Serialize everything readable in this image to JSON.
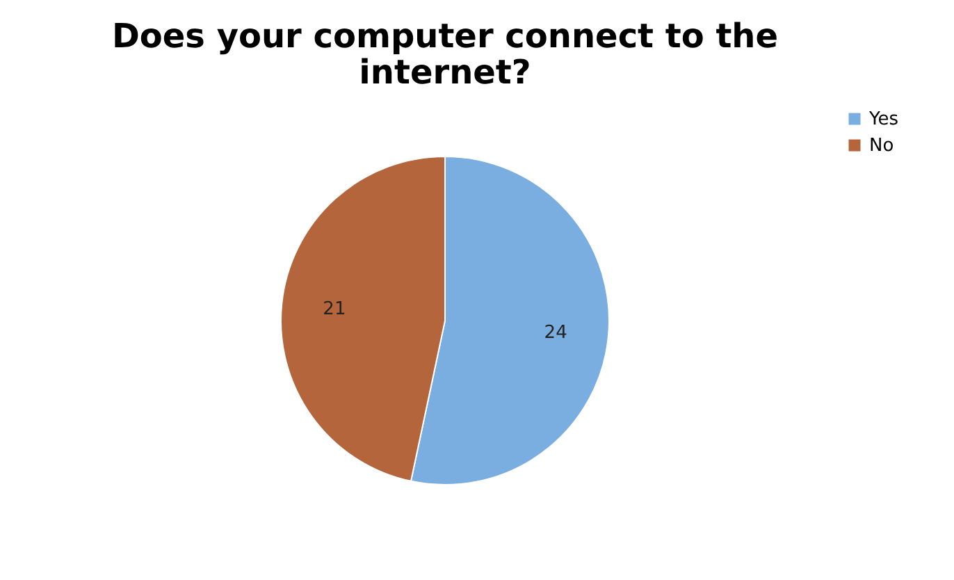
{
  "chart_data": {
    "type": "pie",
    "title": "Does your computer connect to the internet?",
    "categories": [
      "Yes",
      "No"
    ],
    "values": [
      24,
      21
    ],
    "colors": [
      "#7aaee0",
      "#b5653c"
    ],
    "data_labels": true,
    "legend": "right"
  }
}
